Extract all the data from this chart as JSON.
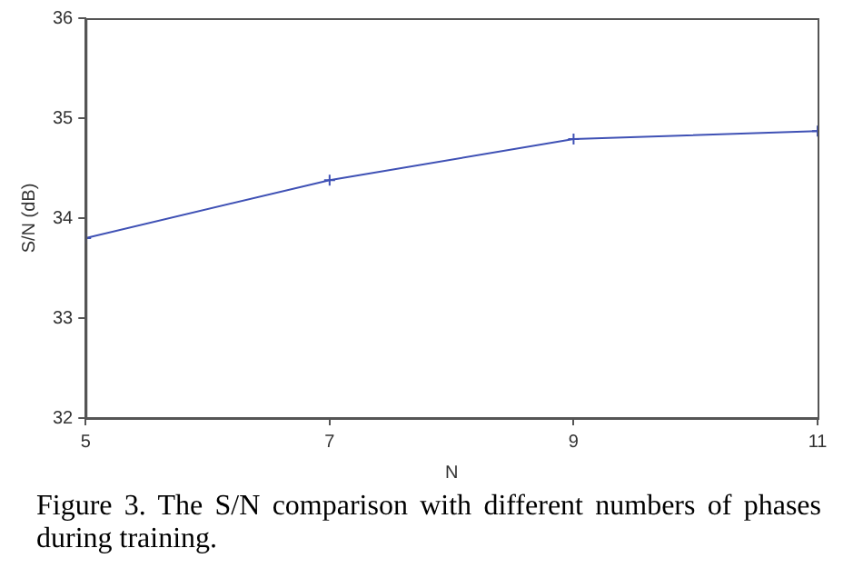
{
  "chart_data": {
    "type": "line",
    "xlabel": "N",
    "ylabel": "S/N (dB)",
    "x": [
      5,
      7,
      9,
      11
    ],
    "series": [
      {
        "color": "#3f51b5",
        "values": [
          33.8,
          34.38,
          34.79,
          34.87
        ]
      }
    ],
    "xlim": [
      5,
      11
    ],
    "xticks": [
      5,
      7,
      9,
      11
    ],
    "ylim": [
      32,
      36
    ],
    "yticks": [
      32,
      33,
      34,
      35,
      36
    ],
    "grid": false,
    "legend": false,
    "marker": "cross",
    "line_style": "solid",
    "annotations": [
      "Figure 3. The S/N comparison with different numbers of phases during training."
    ]
  }
}
